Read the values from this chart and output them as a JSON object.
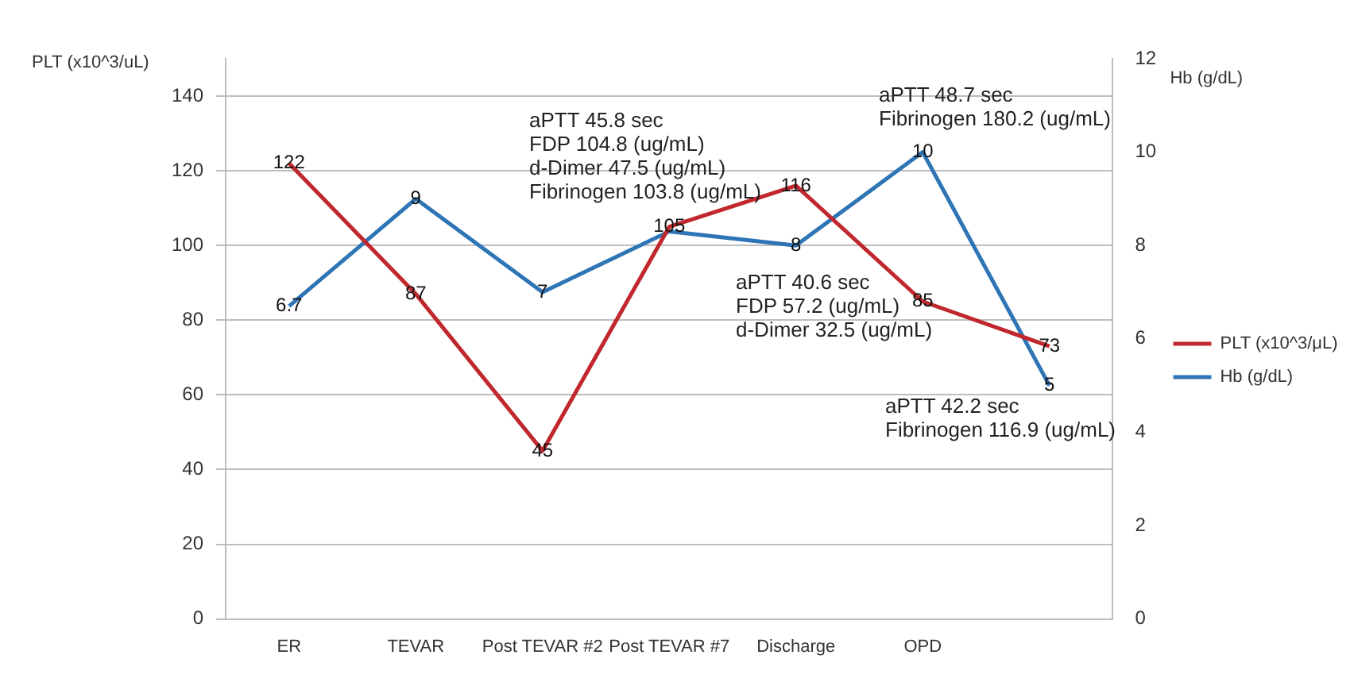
{
  "chart_data": {
    "type": "line",
    "ylabel": "PLT (x10^3/uL)",
    "y2label": "Hb (g/dL)",
    "categories": [
      "ER",
      "TEVAR",
      "Post TEVAR #2",
      "Post TEVAR #7",
      "Discharge",
      "OPD",
      null
    ],
    "series": [
      {
        "name": "PLT (x10^3/μL)",
        "color": "#c0282d",
        "values": [
          122,
          87,
          45,
          105,
          116,
          85,
          73
        ],
        "value_labels": [
          "122",
          "87",
          "45",
          "105",
          "116",
          "85",
          "73"
        ]
      },
      {
        "name": "Hb (g/dL)",
        "color": "#2e75b6",
        "axis": "y2",
        "values": [
          6.7,
          9,
          7,
          8.3,
          8,
          10,
          5
        ],
        "value_labels": [
          "6.7",
          "9",
          "7",
          null,
          "8",
          "10",
          "5"
        ]
      }
    ],
    "ylim": [
      0,
      150
    ],
    "yticks": [
      0,
      20,
      40,
      60,
      80,
      100,
      120,
      140
    ],
    "y2lim": [
      0,
      12
    ],
    "y2ticks": [
      0,
      2,
      4,
      6,
      8,
      10,
      12
    ],
    "grid": "y",
    "legend": "right",
    "marker": "none",
    "line_style": "solid",
    "annotations": [
      "aPTT 45.8 sec\nFDP 104.8 (ug/mL)\nd-Dimer 47.5 (ug/mL)\nFibrinogen 103.8 (ug/mL)",
      "aPTT 48.7 sec\nFibrinogen 180.2 (ug/mL)",
      "aPTT 40.6 sec\nFDP 57.2 (ug/mL)\nd-Dimer 32.5 (ug/mL)",
      "aPTT 42.2 sec\nFibrinogen 116.9 (ug/mL)"
    ]
  }
}
